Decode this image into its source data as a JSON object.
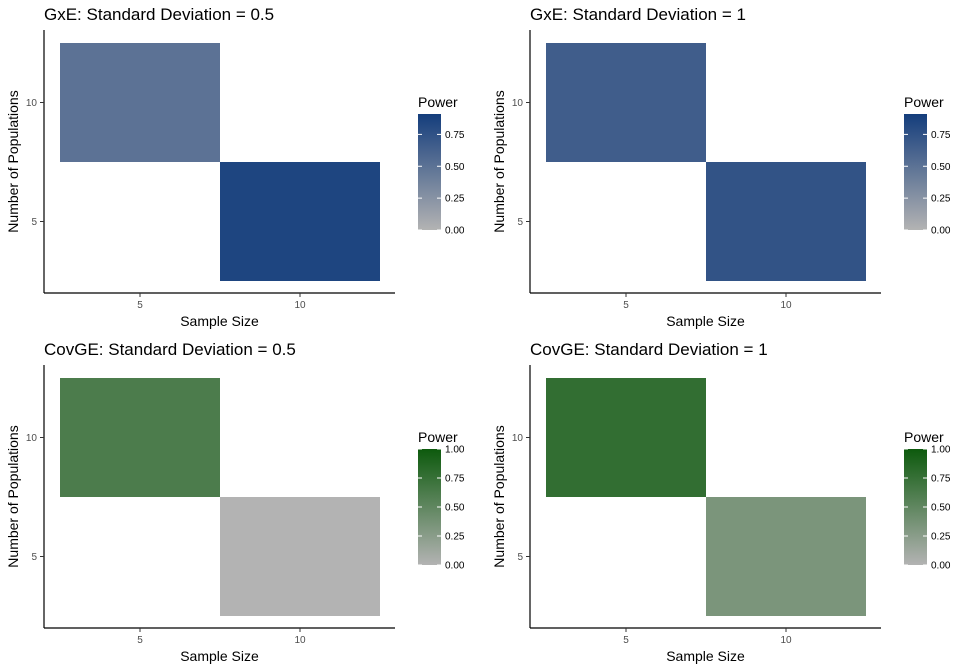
{
  "chart_data": [
    {
      "type": "heatmap",
      "title": "GxE: Standard Deviation = 0.5",
      "xlabel": "Sample Size",
      "ylabel": "Number of Populations",
      "x_categories": [
        "5",
        "10"
      ],
      "y_categories": [
        "5",
        "10"
      ],
      "cells": [
        {
          "x": "5",
          "y": "10",
          "value": 0.5
        },
        {
          "x": "10",
          "y": "5",
          "value": 0.85
        }
      ],
      "legend": {
        "title": "Power",
        "ticks": [
          0.0,
          0.25,
          0.5,
          0.75
        ],
        "tick_labels": [
          "0.00",
          "0.25",
          "0.50",
          "0.75"
        ],
        "max": 0.91,
        "low_color": "#b3b3b3",
        "high_color": "#143d7c"
      }
    },
    {
      "type": "heatmap",
      "title": "GxE: Standard Deviation = 1",
      "xlabel": "Sample Size",
      "ylabel": "Number of Populations",
      "x_categories": [
        "5",
        "10"
      ],
      "y_categories": [
        "5",
        "10"
      ],
      "cells": [
        {
          "x": "5",
          "y": "10",
          "value": 0.66
        },
        {
          "x": "10",
          "y": "5",
          "value": 0.74
        }
      ],
      "legend": {
        "title": "Power",
        "ticks": [
          0.0,
          0.25,
          0.5,
          0.75
        ],
        "tick_labels": [
          "0.00",
          "0.25",
          "0.50",
          "0.75"
        ],
        "max": 0.91,
        "low_color": "#b3b3b3",
        "high_color": "#143d7c"
      }
    },
    {
      "type": "heatmap",
      "title": "CovGE: Standard Deviation = 0.5",
      "xlabel": "Sample Size",
      "ylabel": "Number of Populations",
      "x_categories": [
        "5",
        "10"
      ],
      "y_categories": [
        "5",
        "10"
      ],
      "cells": [
        {
          "x": "5",
          "y": "10",
          "value": 0.62
        },
        {
          "x": "10",
          "y": "5",
          "value": 0.0
        }
      ],
      "legend": {
        "title": "Power",
        "ticks": [
          0.0,
          0.25,
          0.5,
          0.75,
          1.0
        ],
        "tick_labels": [
          "0.00",
          "0.25",
          "0.50",
          "0.75",
          "1.00"
        ],
        "max": 1.0,
        "low_color": "#b3b3b3",
        "high_color": "#0d5a0d"
      }
    },
    {
      "type": "heatmap",
      "title": "CovGE: Standard Deviation = 1",
      "xlabel": "Sample Size",
      "ylabel": "Number of Populations",
      "x_categories": [
        "5",
        "10"
      ],
      "y_categories": [
        "5",
        "10"
      ],
      "cells": [
        {
          "x": "5",
          "y": "10",
          "value": 0.78
        },
        {
          "x": "10",
          "y": "5",
          "value": 0.34
        }
      ],
      "legend": {
        "title": "Power",
        "ticks": [
          0.0,
          0.25,
          0.5,
          0.75,
          1.0
        ],
        "tick_labels": [
          "0.00",
          "0.25",
          "0.50",
          "0.75",
          "1.00"
        ],
        "max": 1.0,
        "low_color": "#b3b3b3",
        "high_color": "#0d5a0d"
      }
    }
  ]
}
